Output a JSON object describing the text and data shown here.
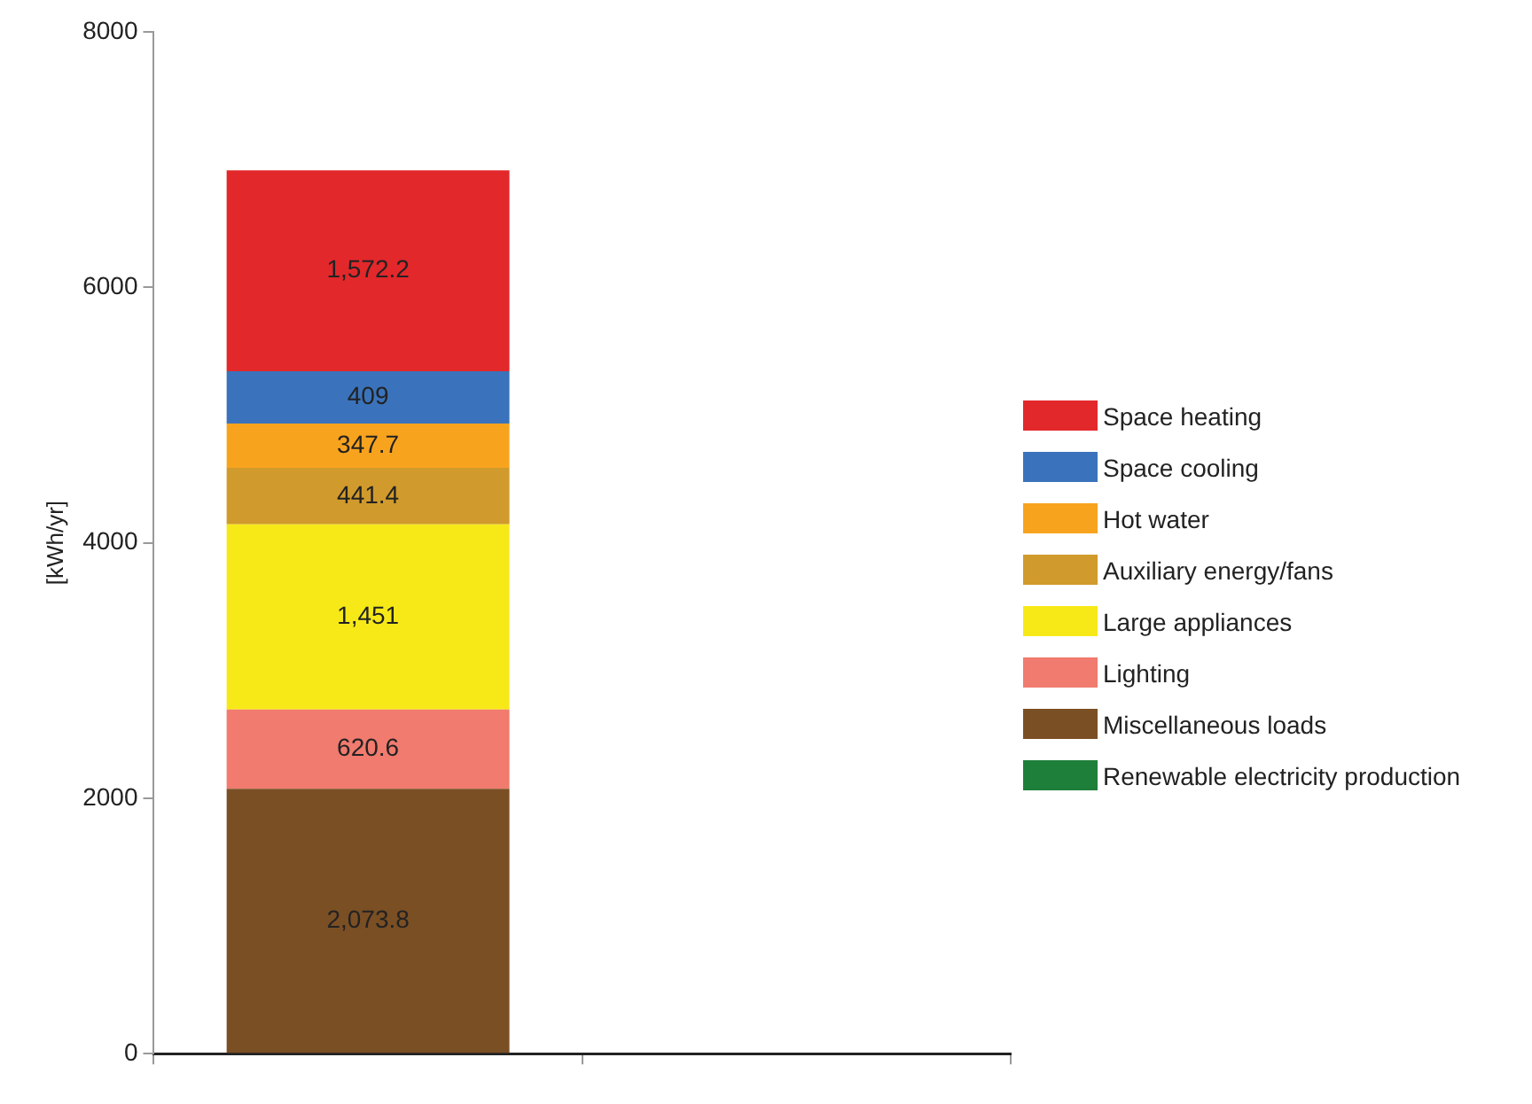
{
  "chart_data": {
    "type": "bar",
    "stacked": true,
    "ylabel": "[kWh/yr]",
    "categories": [
      null,
      null
    ],
    "ylim": [
      0,
      8000
    ],
    "yticks": [
      0,
      2000,
      4000,
      6000,
      8000
    ],
    "grid": false,
    "legend": "right",
    "series": [
      {
        "name": "Renewable electricity production",
        "color": "#1e7f3a",
        "values": [
          null,
          null
        ],
        "value_labels": [
          null,
          null
        ]
      },
      {
        "name": "Miscellaneous loads",
        "color": "#7b4f24",
        "values": [
          2073.8,
          null
        ],
        "value_labels": [
          "2,073.8",
          null
        ]
      },
      {
        "name": "Lighting",
        "color": "#f07b6e",
        "values": [
          620.6,
          null
        ],
        "value_labels": [
          "620.6",
          null
        ]
      },
      {
        "name": "Large appliances",
        "color": "#f7e918",
        "values": [
          1451,
          null
        ],
        "value_labels": [
          "1,451",
          null
        ]
      },
      {
        "name": "Auxiliary energy/fans",
        "color": "#d19a2c",
        "values": [
          441.4,
          null
        ],
        "value_labels": [
          "441.4",
          null
        ]
      },
      {
        "name": "Hot water",
        "color": "#f8a31e",
        "values": [
          347.7,
          null
        ],
        "value_labels": [
          "347.7",
          null
        ]
      },
      {
        "name": "Space cooling",
        "color": "#3a73bb",
        "values": [
          409,
          null
        ],
        "value_labels": [
          "409",
          null
        ]
      },
      {
        "name": "Space heating",
        "color": "#e2282b",
        "values": [
          1572.2,
          null
        ],
        "value_labels": [
          "1,572.2",
          null
        ]
      }
    ]
  }
}
